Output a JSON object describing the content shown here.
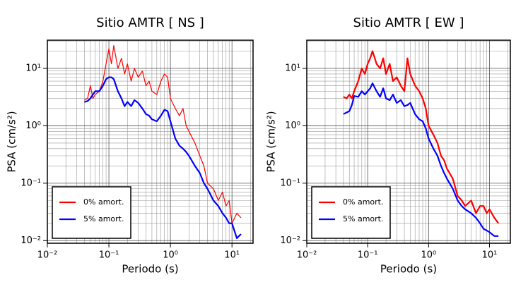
{
  "chart_data": [
    {
      "type": "line",
      "title": "Sitio AMTR [ NS ]",
      "x_label": "Periodo (s)",
      "y_label": "PSA (cm/s²)",
      "x_log": true,
      "y_log": true,
      "grid": true,
      "legend": "lower left",
      "xlim": [
        0.01,
        22
      ],
      "ylim": [
        0.009,
        31
      ],
      "xticks": [
        {
          "value": 0.01,
          "label": "10⁻²"
        },
        {
          "value": 0.1,
          "label": "10⁻¹"
        },
        {
          "value": 1,
          "label": "10⁰"
        },
        {
          "value": 10,
          "label": "10¹"
        }
      ],
      "yticks": [
        {
          "value": 0.01,
          "label": "10⁻²"
        },
        {
          "value": 0.1,
          "label": "10⁻¹"
        },
        {
          "value": 1,
          "label": "10⁰"
        },
        {
          "value": 10,
          "label": "10¹"
        }
      ],
      "x": [
        0.04,
        0.045,
        0.05,
        0.055,
        0.06,
        0.07,
        0.08,
        0.09,
        0.1,
        0.11,
        0.12,
        0.14,
        0.16,
        0.18,
        0.2,
        0.23,
        0.26,
        0.3,
        0.35,
        0.4,
        0.45,
        0.5,
        0.6,
        0.7,
        0.8,
        0.9,
        1.0,
        1.2,
        1.4,
        1.6,
        1.8,
        2.0,
        2.5,
        3,
        3.5,
        4,
        5,
        6,
        7,
        8,
        9,
        10,
        12,
        14
      ],
      "series": [
        {
          "name": "0% amort.",
          "color": "#ff0000",
          "width": 1.2,
          "values": [
            2.8,
            3,
            5,
            3,
            3.5,
            4,
            6,
            12,
            22,
            12,
            25,
            10,
            15,
            8,
            12,
            6,
            10,
            7,
            9,
            5,
            6,
            4,
            3.5,
            6,
            8,
            7,
            3,
            2,
            1.5,
            2,
            1,
            0.8,
            0.5,
            0.3,
            0.2,
            0.1,
            0.08,
            0.05,
            0.07,
            0.04,
            0.05,
            0.02,
            0.03,
            0.025
          ]
        },
        {
          "name": "5% amort.",
          "color": "#0000ff",
          "width": 2.2,
          "values": [
            2.6,
            2.7,
            3,
            3.5,
            4,
            4,
            5,
            6.5,
            7,
            7,
            6.5,
            4,
            3,
            2.2,
            2.6,
            2.2,
            2.8,
            2.5,
            2,
            1.6,
            1.5,
            1.3,
            1.2,
            1.5,
            1.9,
            1.8,
            1.2,
            0.6,
            0.45,
            0.4,
            0.35,
            0.3,
            0.2,
            0.15,
            0.1,
            0.08,
            0.05,
            0.04,
            0.03,
            0.025,
            0.02,
            0.02,
            0.011,
            0.013
          ]
        }
      ]
    },
    {
      "type": "line",
      "title": "Sitio AMTR [ EW ]",
      "x_label": "Periodo (s)",
      "y_label": "PSA (cm/s²)",
      "x_log": true,
      "y_log": true,
      "grid": true,
      "legend": "lower left",
      "xlim": [
        0.01,
        22
      ],
      "ylim": [
        0.009,
        31
      ],
      "xticks": [
        {
          "value": 0.01,
          "label": "10⁻²"
        },
        {
          "value": 0.1,
          "label": "10⁻¹"
        },
        {
          "value": 1,
          "label": "10⁰"
        },
        {
          "value": 10,
          "label": "10¹"
        }
      ],
      "yticks": [
        {
          "value": 0.01,
          "label": "10⁻²"
        },
        {
          "value": 0.1,
          "label": "10⁻¹"
        },
        {
          "value": 1,
          "label": "10⁰"
        },
        {
          "value": 10,
          "label": "10¹"
        }
      ],
      "x": [
        0.04,
        0.045,
        0.05,
        0.055,
        0.06,
        0.07,
        0.08,
        0.09,
        0.1,
        0.11,
        0.12,
        0.14,
        0.16,
        0.18,
        0.2,
        0.23,
        0.26,
        0.3,
        0.35,
        0.4,
        0.45,
        0.5,
        0.6,
        0.7,
        0.8,
        0.9,
        1.0,
        1.2,
        1.4,
        1.6,
        1.8,
        2.0,
        2.5,
        3,
        3.5,
        4,
        5,
        6,
        7,
        8,
        9,
        10,
        12,
        14
      ],
      "series": [
        {
          "name": "0% amort.",
          "color": "#ff0000",
          "width": 2.2,
          "values": [
            3.2,
            3,
            3.5,
            3,
            4,
            6,
            10,
            8,
            12,
            15,
            20,
            12,
            10,
            15,
            8,
            12,
            6,
            7,
            5,
            4,
            15,
            8,
            5,
            4,
            3,
            2,
            1,
            0.7,
            0.5,
            0.3,
            0.25,
            0.18,
            0.12,
            0.06,
            0.05,
            0.04,
            0.05,
            0.03,
            0.04,
            0.04,
            0.03,
            0.035,
            0.025,
            0.02
          ]
        },
        {
          "name": "5% amort.",
          "color": "#0000ff",
          "width": 2.2,
          "values": [
            1.6,
            1.7,
            1.8,
            2.3,
            3.3,
            3.2,
            4,
            3.5,
            4,
            4.5,
            5.5,
            4,
            3.2,
            4.5,
            3,
            2.8,
            3.5,
            2.5,
            2.8,
            2.2,
            2.3,
            2.5,
            1.6,
            1.3,
            1.2,
            0.9,
            0.6,
            0.4,
            0.3,
            0.2,
            0.15,
            0.12,
            0.08,
            0.05,
            0.04,
            0.035,
            0.03,
            0.025,
            0.02,
            0.016,
            0.015,
            0.014,
            0.012,
            0.012
          ]
        }
      ]
    }
  ]
}
